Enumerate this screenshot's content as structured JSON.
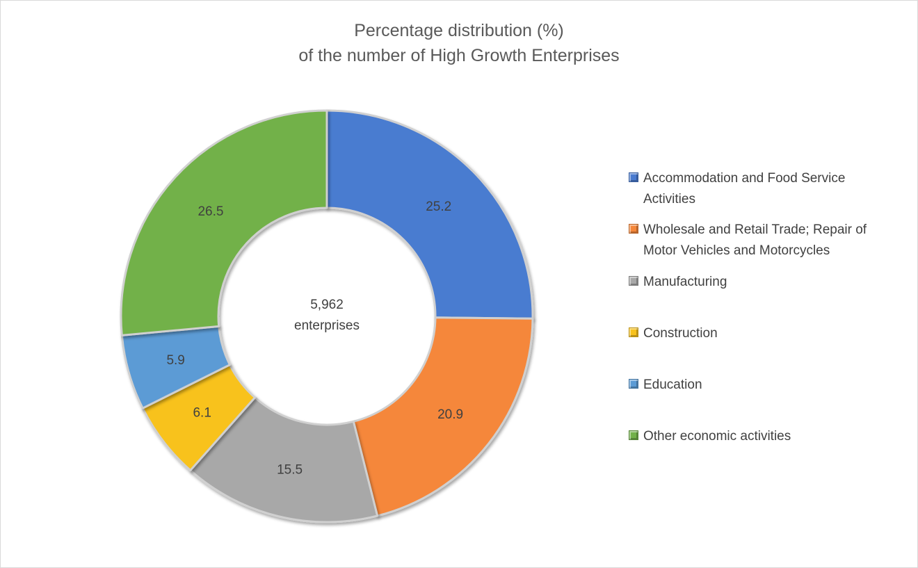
{
  "chart_data": {
    "type": "pie",
    "variant": "doughnut",
    "title": "Percentage distribution (%)\nof the number of High Growth Enterprises",
    "title_lines": [
      "Percentage distribution (%)",
      "of the number of High Growth Enterprises"
    ],
    "center_label": {
      "value": "5,962",
      "text": "enterprises"
    },
    "categories": [
      "Accommodation and Food Service Activities",
      "Wholesale and Retail Trade; Repair of Motor Vehicles and Motorcycles",
      "Manufacturing",
      "Construction",
      "Education",
      "Other economic activities"
    ],
    "values": [
      25.2,
      20.9,
      15.5,
      6.1,
      5.9,
      26.5
    ],
    "data_labels": [
      "25.2",
      "20.9",
      "15.5",
      "6.1",
      "5.9",
      "26.5"
    ],
    "colors": [
      "#4a7bd0",
      "#f5873a",
      "#a8a8a8",
      "#f8c21c",
      "#5b9bd5",
      "#72b14a"
    ],
    "legend": {
      "position": "right",
      "items": [
        [
          "Accommodation and Food Service",
          "Activities"
        ],
        [
          "Wholesale and Retail Trade; Repair of",
          "Motor Vehicles and Motorcycles"
        ],
        [
          "Manufacturing"
        ],
        [
          "Construction"
        ],
        [
          "Education"
        ],
        [
          "Other economic activities"
        ]
      ]
    },
    "grid": false
  }
}
